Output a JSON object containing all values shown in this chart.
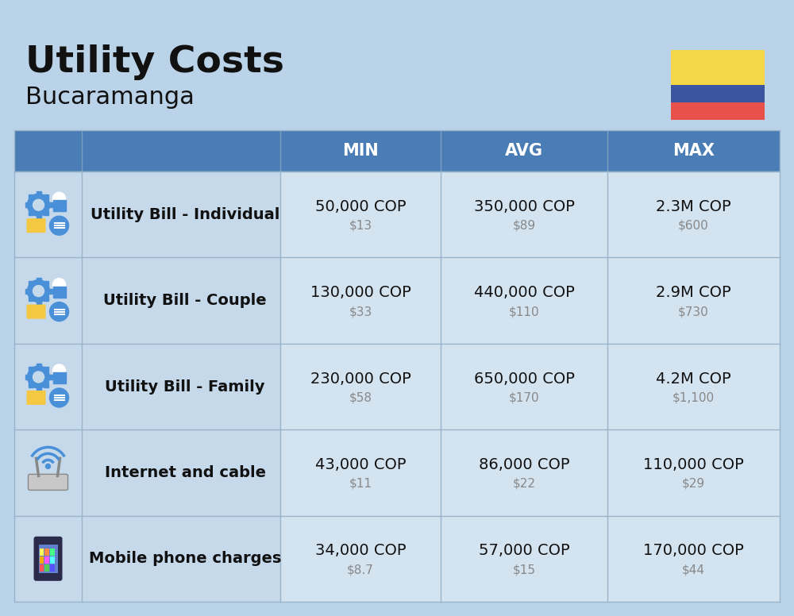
{
  "title": "Utility Costs",
  "subtitle": "Bucaramanga",
  "bg_color": "#bad3e8",
  "header_bg": "#4a7db5",
  "row_left_bg": "#c5d9eb",
  "row_right_bg": "#d4e3f0",
  "separator_color": "#9ab5cb",
  "columns": [
    "MIN",
    "AVG",
    "MAX"
  ],
  "rows": [
    {
      "label": "Utility Bill - Individual",
      "icon": "utility",
      "min_cop": "50,000 COP",
      "min_usd": "$13",
      "avg_cop": "350,000 COP",
      "avg_usd": "$89",
      "max_cop": "2.3M COP",
      "max_usd": "$600"
    },
    {
      "label": "Utility Bill - Couple",
      "icon": "utility",
      "min_cop": "130,000 COP",
      "min_usd": "$33",
      "avg_cop": "440,000 COP",
      "avg_usd": "$110",
      "max_cop": "2.9M COP",
      "max_usd": "$730"
    },
    {
      "label": "Utility Bill - Family",
      "icon": "utility",
      "min_cop": "230,000 COP",
      "min_usd": "$58",
      "avg_cop": "650,000 COP",
      "avg_usd": "$170",
      "max_cop": "4.2M COP",
      "max_usd": "$1,100"
    },
    {
      "label": "Internet and cable",
      "icon": "internet",
      "min_cop": "43,000 COP",
      "min_usd": "$11",
      "avg_cop": "86,000 COP",
      "avg_usd": "$22",
      "max_cop": "110,000 COP",
      "max_usd": "$29"
    },
    {
      "label": "Mobile phone charges",
      "icon": "mobile",
      "min_cop": "34,000 COP",
      "min_usd": "$8.7",
      "avg_cop": "57,000 COP",
      "avg_usd": "$15",
      "max_cop": "170,000 COP",
      "max_usd": "$44"
    }
  ],
  "flag_colors": [
    "#F5D848",
    "#3A56A0",
    "#E8504A"
  ],
  "title_fontsize": 34,
  "subtitle_fontsize": 22,
  "header_fontsize": 15,
  "label_fontsize": 14,
  "cop_fontsize": 14,
  "usd_fontsize": 11
}
